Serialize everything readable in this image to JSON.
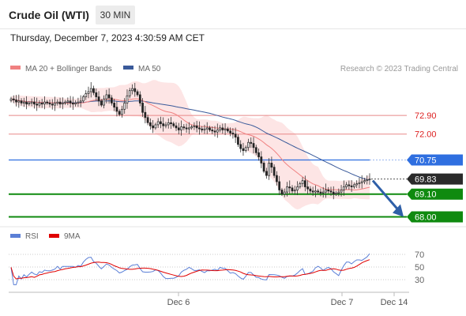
{
  "header": {
    "title": "Crude Oil (WTI)",
    "timeframe": "30 MIN",
    "datetime": "Thursday, December 7, 2023 4:30:59 AM CET"
  },
  "legend": {
    "ma20_label": "MA 20 + Bollinger Bands",
    "ma50_label": "MA 50",
    "ma20_color": "#f08080",
    "ma50_color": "#3a5a9a",
    "rsi_label": "RSI",
    "ma9_label": "9MA",
    "rsi_color": "#5b7fd6",
    "ma9_color": "#e00000"
  },
  "credit": "Research © 2023 Trading Central",
  "levels": [
    {
      "label": "72.90",
      "value": 72.9,
      "kind": "resistance",
      "color": "#e88888"
    },
    {
      "label": "72.00",
      "value": 72.0,
      "kind": "resistance",
      "color": "#e88888"
    },
    {
      "label": "70.75",
      "value": 70.75,
      "kind": "pivot",
      "color": "#2f6fe0"
    },
    {
      "label": "69.83",
      "value": 69.83,
      "kind": "last-price",
      "color": "#2a2a2a"
    },
    {
      "label": "69.10",
      "value": 69.1,
      "kind": "support",
      "color": "#0f8a0f"
    },
    {
      "label": "68.00",
      "value": 68.0,
      "kind": "support",
      "color": "#0f8a0f"
    }
  ],
  "rsi_levels": [
    "70",
    "50",
    "30"
  ],
  "x_axis_labels": [
    "Dec 6",
    "Dec 7",
    "Dec 14"
  ],
  "chart_data": {
    "type": "candlestick",
    "title": "Crude Oil (WTI)",
    "interval": "30 MIN",
    "x_ticks": [
      "Dec 6",
      "Dec 7",
      "Dec 14"
    ],
    "closes": [
      73.7,
      73.65,
      73.55,
      73.6,
      73.5,
      73.55,
      73.45,
      73.5,
      73.55,
      73.45,
      73.4,
      73.5,
      73.45,
      73.55,
      73.5,
      73.45,
      73.4,
      73.5,
      73.55,
      73.45,
      73.5,
      73.55,
      73.6,
      73.5,
      73.45,
      73.5,
      73.55,
      73.6,
      73.8,
      73.95,
      74.05,
      74.2,
      74.0,
      73.8,
      73.6,
      73.4,
      73.7,
      73.9,
      73.75,
      73.5,
      73.3,
      73.1,
      72.95,
      73.2,
      73.5,
      73.85,
      74.1,
      74.2,
      74.05,
      73.9,
      73.5,
      73.05,
      72.8,
      72.55,
      72.4,
      72.3,
      72.45,
      72.6,
      72.5,
      72.4,
      72.45,
      72.55,
      72.5,
      72.4,
      72.3,
      72.2,
      72.35,
      72.3,
      72.25,
      72.3,
      72.35,
      72.4,
      72.3,
      72.25,
      72.2,
      72.25,
      72.3,
      72.2,
      72.15,
      72.1,
      72.2,
      72.3,
      72.2,
      72.25,
      72.15,
      72.05,
      72.0,
      71.85,
      71.5,
      71.3,
      71.2,
      71.35,
      71.6,
      71.55,
      71.35,
      71.1,
      70.9,
      70.6,
      70.2,
      70.0,
      70.6,
      70.4,
      70.0,
      69.7,
      69.3,
      69.1,
      69.2,
      69.45,
      69.4,
      69.25,
      69.3,
      69.45,
      69.6,
      69.75,
      69.45,
      69.35,
      69.25,
      69.2,
      69.25,
      69.2,
      69.15,
      69.2,
      69.3,
      69.25,
      69.2,
      69.1,
      69.15,
      69.2,
      69.3,
      69.45,
      69.55,
      69.5,
      69.45,
      69.55,
      69.6,
      69.65,
      69.7,
      69.75,
      69.8,
      69.83
    ],
    "series": [
      {
        "name": "MA 20 + Bollinger Bands"
      },
      {
        "name": "MA 50"
      }
    ],
    "rsi": {
      "levels": [
        70,
        50,
        30
      ],
      "series": [
        {
          "name": "RSI"
        },
        {
          "name": "9MA"
        }
      ]
    },
    "levels": [
      72.9,
      72.0,
      70.75,
      69.83,
      69.1,
      68.0
    ],
    "projection": {
      "from": 69.83,
      "to": 68.0,
      "direction": "down"
    },
    "ylim": [
      67.6,
      74.7
    ]
  }
}
